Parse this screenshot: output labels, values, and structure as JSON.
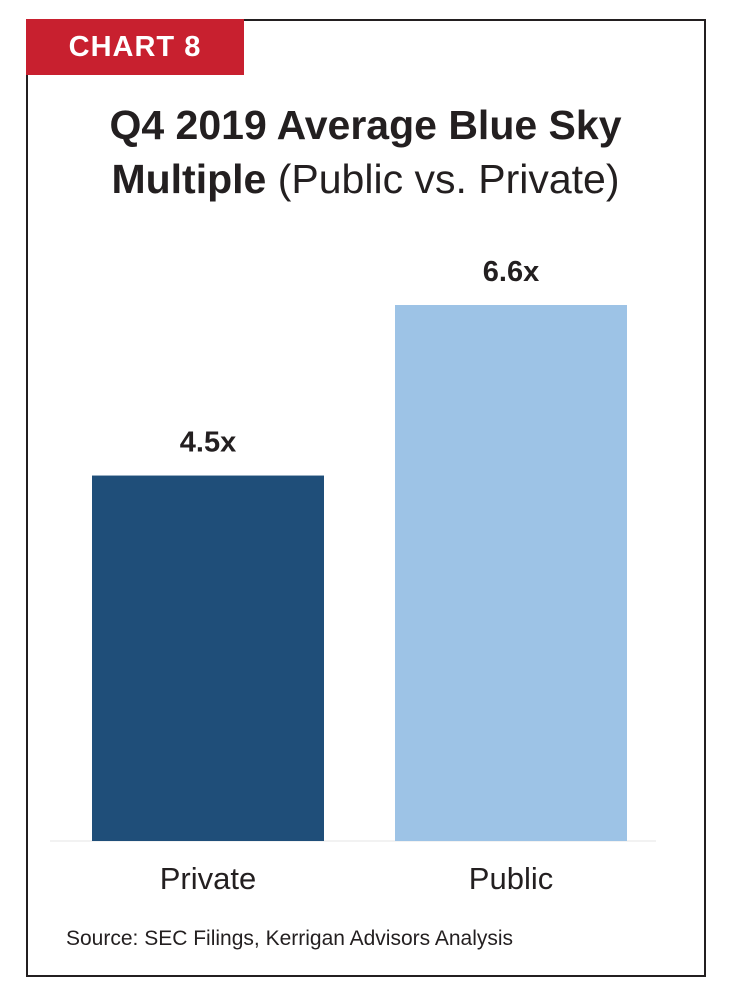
{
  "badge": "CHART 8",
  "title_bold_line1": "Q4 2019 Average Blue Sky",
  "title_bold_line2": "Multiple",
  "title_light": "(Public vs. Private)",
  "source": "Source: SEC Filings, Kerrigan Advisors Analysis",
  "colors": {
    "badge": "#c8202f",
    "private_bar": "#1f4e79",
    "public_bar": "#9dc3e6"
  },
  "chart_data": {
    "type": "bar",
    "title": "Q4 2019 Average Blue Sky Multiple (Public vs. Private)",
    "categories": [
      "Private",
      "Public"
    ],
    "values": [
      4.5,
      6.6
    ],
    "value_labels": [
      "4.5x",
      "6.6x"
    ],
    "xlabel": "",
    "ylabel": "",
    "ylim": [
      0,
      7.0
    ],
    "grid": false,
    "legend": "none"
  }
}
